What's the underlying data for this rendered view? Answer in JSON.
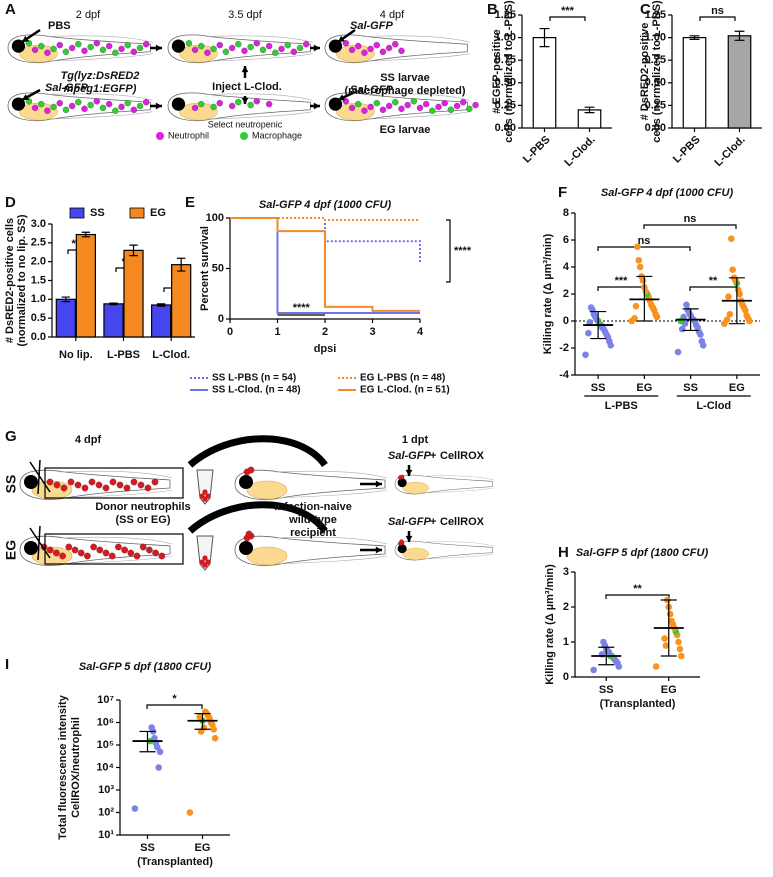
{
  "diagrams": [
    {
      "panel": "A",
      "texts": [
        "2 dpf",
        "3.5 dpf",
        "4 dpf",
        "PBS",
        "Tg(lyz:DsRED2",
        "mpeg1:EGFP)",
        "Sal-GFP",
        "Sal-GFP",
        "Inject L-Clod.",
        "SS larvae",
        "(macrophage depleted)",
        "Select neutropenic",
        "Sal-GFP",
        "EG larvae",
        "Neutrophil",
        "Macrophage"
      ]
    },
    {
      "panel": "G",
      "texts": [
        "4 dpf",
        "1 dpt",
        "SS",
        "EG",
        "Donor neutrophils",
        "(SS or EG)",
        "Infection-naive",
        "wild-type",
        "recipient",
        "Sal-GFP",
        "+",
        "CellROX",
        "Sal-GFP",
        "+",
        "CellROX"
      ]
    }
  ],
  "chart_data": [
    {
      "panel": "B",
      "type": "bar",
      "ylabel": [
        "# EGFP-positive",
        "cells (normalized to L-PBS)"
      ],
      "categories": [
        "L-PBS",
        "L-Clod."
      ],
      "values": [
        1.0,
        0.2
      ],
      "errors": [
        0.1,
        0.03
      ],
      "colors": [
        "#ffffff",
        "#ffffff"
      ],
      "ylim": [
        0,
        1.25
      ],
      "yticks": [
        {
          "value": 0,
          "label": "0.00"
        },
        {
          "value": 0.25,
          "label": "0.25"
        },
        {
          "value": 0.5,
          "label": "0.50"
        },
        {
          "value": 0.75,
          "label": "0.75"
        },
        {
          "value": 1,
          "label": "1.00"
        },
        {
          "value": 1.25,
          "label": "1.25"
        }
      ],
      "annotations": [
        "***"
      ]
    },
    {
      "panel": "C",
      "type": "bar",
      "ylabel": [
        "# DsRED2-positive",
        "cells (normalized to L-PBS)"
      ],
      "categories": [
        "L-PBS",
        "L-Clod."
      ],
      "values": [
        1.0,
        1.02
      ],
      "errors": [
        0.02,
        0.05
      ],
      "colors": [
        "#ffffff",
        "#a6a6a6"
      ],
      "ylim": [
        0,
        1.25
      ],
      "yticks": [
        {
          "value": 0,
          "label": "0.00"
        },
        {
          "value": 0.25,
          "label": "0.25"
        },
        {
          "value": 0.5,
          "label": "0.50"
        },
        {
          "value": 0.75,
          "label": "0.75"
        },
        {
          "value": 1,
          "label": "1.00"
        },
        {
          "value": 1.25,
          "label": "1.25"
        }
      ],
      "annotations": [
        "ns"
      ]
    },
    {
      "panel": "D",
      "type": "bar",
      "ylabel": [
        "# DsRED2-positive cells",
        "(normalized to no lip. SS)"
      ],
      "categories": [
        "No lip.",
        "L-PBS",
        "L-Clod."
      ],
      "series": [
        {
          "name": "SS",
          "color": "#4646ee",
          "values": [
            1.0,
            0.88,
            0.85
          ],
          "errors": [
            0.06,
            0.02,
            0.03
          ]
        },
        {
          "name": "EG",
          "color": "#f5891f",
          "values": [
            2.72,
            2.3,
            1.92
          ],
          "errors": [
            0.06,
            0.14,
            0.17
          ]
        }
      ],
      "ylim": [
        0,
        3
      ],
      "yticks": [
        {
          "value": 0,
          "label": "0.0"
        },
        {
          "value": 0.5,
          "label": "0.5"
        },
        {
          "value": 1,
          "label": "1.0"
        },
        {
          "value": 1.5,
          "label": "1.5"
        },
        {
          "value": 2,
          "label": "2.0"
        },
        {
          "value": 2.5,
          "label": "2.5"
        },
        {
          "value": 3,
          "label": "3.0"
        }
      ],
      "annotations": [
        "****",
        "***",
        "**"
      ]
    },
    {
      "panel": "E",
      "type": "line",
      "title": "Sal-GFP 4 dpf (1000 CFU)",
      "xlabel": "dpsi",
      "ylabel": [
        "Percent survival"
      ],
      "x": [
        0,
        1,
        2,
        3,
        4
      ],
      "step": true,
      "series": [
        {
          "name": "SS L-PBS (n = 54)",
          "color": "#6f73e8",
          "style": "dotted",
          "values": [
            100,
            100,
            77,
            77,
            55
          ]
        },
        {
          "name": "EG L-PBS (n = 48)",
          "color": "#f28c28",
          "style": "dotted",
          "values": [
            100,
            100,
            98,
            98,
            98
          ]
        },
        {
          "name": "SS L-Clod. (n = 48)",
          "color": "#6f73e8",
          "style": "solid",
          "values": [
            100,
            6,
            6,
            6,
            6
          ]
        },
        {
          "name": "EG L-Clod. (n = 51)",
          "color": "#f28c28",
          "style": "solid",
          "values": [
            100,
            87,
            12,
            8,
            8
          ]
        }
      ],
      "xlim": [
        0,
        4
      ],
      "xticks": [
        0,
        1,
        2,
        3,
        4
      ],
      "ylim": [
        0,
        100
      ],
      "yticks": [
        0,
        50,
        100
      ],
      "annotations": [
        "****",
        "****"
      ]
    },
    {
      "panel": "F",
      "type": "scatter",
      "title": "Sal-GFP 4 dpf (1000 CFU)",
      "ylabel": [
        "Killing rate (Δ µm³/min)"
      ],
      "highlight_color": "#33cc33",
      "reference_line": 0,
      "series": [
        {
          "name": "SS",
          "color": "#7b83e6",
          "values": [
            -2.5,
            -1.8,
            -1.5,
            -1.2,
            -1.0,
            -0.8,
            -0.6,
            -0.5,
            -0.3,
            -0.2,
            0,
            0.1,
            0.3,
            0.5,
            0.8,
            1.0,
            -0.1,
            -0.9
          ],
          "mean": -0.3,
          "error_range": [
            -1.3,
            0.7
          ],
          "highlight": 10
        },
        {
          "name": "EG",
          "color": "#f7931e",
          "values": [
            0,
            0.3,
            0.5,
            0.8,
            1.0,
            1.2,
            1.5,
            1.8,
            2.0,
            2.2,
            2.5,
            3.0,
            3.3,
            4.0,
            4.5,
            5.5,
            1.1,
            0.2
          ],
          "mean": 1.6,
          "error_range": [
            0,
            3.3
          ],
          "highlight": 8
        },
        {
          "name": "SS",
          "color": "#7b83e6",
          "values": [
            -2.3,
            -1.8,
            -1.5,
            -1.0,
            -0.8,
            -0.5,
            -0.3,
            0,
            0.1,
            0.2,
            0.4,
            0.6,
            0.8,
            1.2,
            -0.2,
            0.3,
            -0.6,
            0.0
          ],
          "mean": 0.1,
          "error_range": [
            -0.7,
            0.9
          ],
          "highlight": 17
        },
        {
          "name": "EG",
          "color": "#f7931e",
          "values": [
            -0.2,
            0,
            0.2,
            0.4,
            0.8,
            1.0,
            1.2,
            1.5,
            2.0,
            2.3,
            2.8,
            3.0,
            3.2,
            3.8,
            6.1,
            0.5,
            1.8,
            0.1
          ],
          "mean": 1.5,
          "error_range": [
            -0.2,
            3.2
          ],
          "highlight": 10
        }
      ],
      "group_labels": [
        "L-PBS",
        "L-Clod"
      ],
      "ylim": [
        -4,
        8
      ],
      "yticks": [
        -4,
        -2,
        0,
        2,
        4,
        6,
        8
      ],
      "annotations": [
        "ns",
        "ns",
        "***",
        "**"
      ]
    },
    {
      "panel": "H",
      "type": "scatter",
      "title": "Sal-GFP 5 dpf (1800 CFU)",
      "ylabel": [
        "Killing rate (Δ µm³/min)"
      ],
      "highlight_color": "#33cc33",
      "subtitle": "(Transplanted)",
      "series": [
        {
          "name": "SS",
          "color": "#7b83e6",
          "values": [
            0.2,
            0.3,
            0.4,
            0.45,
            0.5,
            0.55,
            0.6,
            0.6,
            0.7,
            0.75,
            0.8,
            0.9,
            1.0,
            0.65
          ],
          "mean": 0.6,
          "error_range": [
            0.35,
            0.85
          ],
          "highlight": 7
        },
        {
          "name": "EG",
          "color": "#f7931e",
          "values": [
            0.3,
            0.6,
            0.8,
            1.0,
            1.2,
            1.3,
            1.4,
            1.5,
            1.6,
            1.8,
            2.0,
            2.2,
            0.9,
            1.1
          ],
          "mean": 1.4,
          "error_range": [
            0.6,
            2.2
          ],
          "highlight": 5
        }
      ],
      "ylim": [
        0,
        3
      ],
      "yticks": [
        0,
        1,
        2,
        3
      ],
      "annotations": [
        "**"
      ]
    },
    {
      "panel": "I",
      "type": "scatter",
      "title": "Sal-GFP 5 dpf (1800 CFU)",
      "ylabel": [
        "Total fluorescence intensity",
        "CellROX/neutrophil"
      ],
      "highlight_color": "#33cc33",
      "subtitle": "(Transplanted)",
      "log_y": true,
      "series": [
        {
          "name": "SS",
          "color": "#7b83e6",
          "values": [
            150,
            50000,
            10000,
            80000,
            120000,
            200000,
            400000,
            600000,
            150000
          ],
          "mean": 150000,
          "error_range": [
            50000,
            400000
          ],
          "highlight": 8
        },
        {
          "name": "EG",
          "color": "#f7931e",
          "values": [
            100,
            200000,
            500000,
            800000,
            1000000,
            1500000,
            2000000,
            2500000,
            3000000,
            600000,
            1200000,
            400000,
            1800000
          ],
          "mean": 1200000,
          "error_range": [
            500000,
            2500000
          ],
          "highlight": 10
        }
      ],
      "ylim": [
        10,
        10000000
      ],
      "yticks": [
        {
          "value": 10,
          "label": "10¹"
        },
        {
          "value": 100,
          "label": "10²"
        },
        {
          "value": 1000,
          "label": "10³"
        },
        {
          "value": 10000,
          "label": "10⁴"
        },
        {
          "value": 100000,
          "label": "10⁵"
        },
        {
          "value": 1000000,
          "label": "10⁶"
        },
        {
          "value": 10000000,
          "label": "10⁷"
        }
      ],
      "annotations": [
        "*"
      ]
    }
  ]
}
